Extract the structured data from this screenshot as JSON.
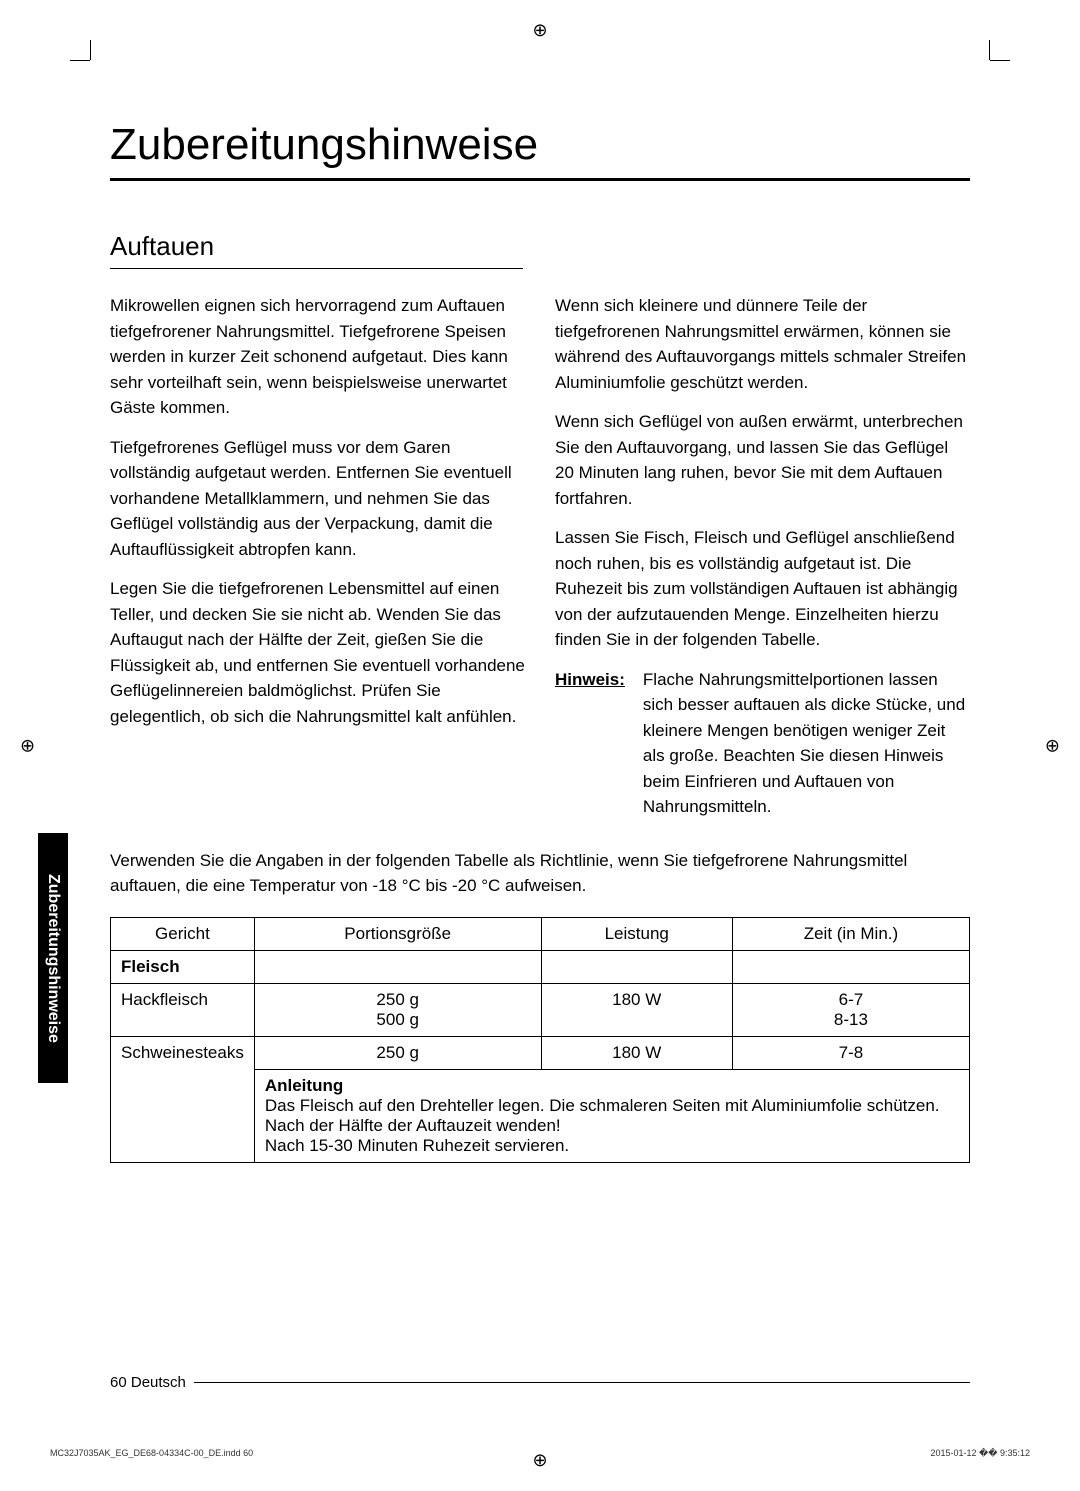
{
  "title": "Zubereitungshinweise",
  "section_title": "Auftauen",
  "left_paragraphs": [
    "Mikrowellen eignen sich hervorragend zum Auftauen tiefgefrorener Nahrungsmittel. Tiefgefrorene Speisen werden in kurzer Zeit schonend aufgetaut. Dies kann sehr vorteilhaft sein, wenn beispielsweise unerwartet Gäste kommen.",
    "Tiefgefrorenes Geflügel muss vor dem Garen vollständig aufgetaut werden. Entfernen Sie eventuell vorhandene Metallklammern, und nehmen Sie das Geflügel vollständig aus der Verpackung, damit die Auftauflüssigkeit abtropfen kann.",
    "Legen Sie die tiefgefrorenen Lebensmittel auf einen Teller, und decken Sie sie nicht ab. Wenden Sie das Auftaugut nach der Hälfte der Zeit, gießen Sie die Flüssigkeit ab, und entfernen Sie eventuell vorhandene Geflügelinnereien baldmöglichst. Prüfen Sie gelegentlich, ob sich die Nahrungsmittel kalt anfühlen."
  ],
  "right_paragraphs": [
    "Wenn sich kleinere und dünnere Teile der tiefgefrorenen Nahrungsmittel erwärmen, können sie während des Auftauvorgangs mittels schmaler Streifen Aluminiumfolie geschützt werden.",
    "Wenn sich Geflügel von außen erwärmt, unterbrechen Sie den Auftauvorgang, und lassen Sie das Geflügel 20 Minuten lang ruhen, bevor Sie mit dem Auftauen fortfahren.",
    "Lassen Sie Fisch, Fleisch und Geflügel anschließend noch ruhen, bis es vollständig aufgetaut ist. Die Ruhezeit bis zum vollständigen Auftauen ist abhängig von der aufzutauenden Menge. Einzelheiten hierzu finden Sie in der folgenden Tabelle."
  ],
  "hinweis_label": "Hinweis:",
  "hinweis_text": "Flache Nahrungsmittelportionen lassen sich besser auftauen als dicke Stücke, und kleinere Mengen benötigen weniger Zeit als große. Beachten Sie diesen Hinweis beim Einfrieren und Auftauen von Nahrungsmitteln.",
  "table_intro": "Verwenden Sie die Angaben in der folgenden Tabelle als Richtlinie, wenn Sie tiefgefrorene Nahrungsmittel auftauen, die eine Temperatur von -18 °C bis -20 °C aufweisen.",
  "table": {
    "headers": [
      "Gericht",
      "Portionsgröße",
      "Leistung",
      "Zeit (in Min.)"
    ],
    "category": "Fleisch",
    "rows": [
      {
        "dish": "Hackfleisch",
        "portion_lines": [
          "250 g",
          "500 g"
        ],
        "power": "180 W",
        "time_lines": [
          "6-7",
          "8-13"
        ]
      },
      {
        "dish": "Schweinesteaks",
        "portion_lines": [
          "250 g"
        ],
        "power": "180 W",
        "time_lines": [
          "7-8"
        ]
      }
    ],
    "instruction_label": "Anleitung",
    "instruction_text": "Das Fleisch auf den Drehteller legen. Die schmaleren Seiten mit Aluminiumfolie schützen. Nach der Hälfte der Auftauzeit wenden!\nNach 15-30 Minuten Ruhezeit servieren."
  },
  "side_tab": "Zubereitungshinweise",
  "page_num": "60",
  "page_lang": "Deutsch",
  "footer_file": "MC32J7035AK_EG_DE68-04334C-00_DE.indd   60",
  "footer_date": "2015-01-12   �� 9:35:12"
}
